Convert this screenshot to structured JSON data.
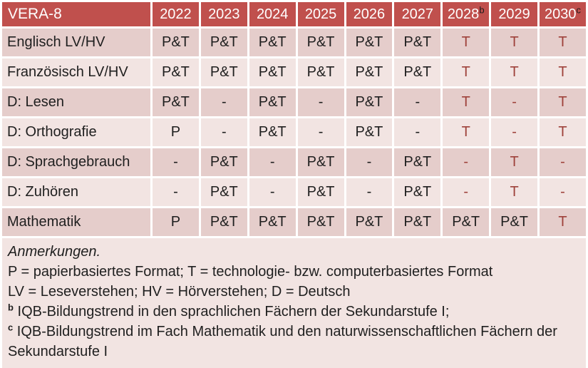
{
  "table": {
    "title": "VERA-8",
    "years": [
      {
        "label": "2022"
      },
      {
        "label": "2023"
      },
      {
        "label": "2024"
      },
      {
        "label": "2025"
      },
      {
        "label": "2026"
      },
      {
        "label": "2027"
      },
      {
        "label": "2028",
        "sup": "b"
      },
      {
        "label": "2029"
      },
      {
        "label": "2030",
        "sup": "c"
      }
    ],
    "rows": [
      {
        "label": "Englisch LV/HV",
        "cells": [
          {
            "text": "P&T"
          },
          {
            "text": "P&T"
          },
          {
            "text": "P&T"
          },
          {
            "text": "P&T"
          },
          {
            "text": "P&T"
          },
          {
            "text": "P&T"
          },
          {
            "text": "T",
            "accent": true
          },
          {
            "text": "T",
            "accent": true
          },
          {
            "text": "T",
            "accent": true
          }
        ]
      },
      {
        "label": "Französisch LV/HV",
        "cells": [
          {
            "text": "P&T"
          },
          {
            "text": "P&T"
          },
          {
            "text": "P&T"
          },
          {
            "text": "P&T"
          },
          {
            "text": "P&T"
          },
          {
            "text": "P&T"
          },
          {
            "text": "T",
            "accent": true
          },
          {
            "text": "T",
            "accent": true
          },
          {
            "text": "T",
            "accent": true
          }
        ]
      },
      {
        "label": "D: Lesen",
        "cells": [
          {
            "text": "P&T"
          },
          {
            "text": "-"
          },
          {
            "text": "P&T"
          },
          {
            "text": "-"
          },
          {
            "text": "P&T"
          },
          {
            "text": "-"
          },
          {
            "text": "T",
            "accent": true
          },
          {
            "text": "-",
            "accent": true
          },
          {
            "text": "T",
            "accent": true
          }
        ]
      },
      {
        "label": "D: Orthografie",
        "cells": [
          {
            "text": "P"
          },
          {
            "text": "-"
          },
          {
            "text": "P&T"
          },
          {
            "text": "-"
          },
          {
            "text": "P&T"
          },
          {
            "text": "-"
          },
          {
            "text": "T",
            "accent": true
          },
          {
            "text": "-",
            "accent": true
          },
          {
            "text": "T",
            "accent": true
          }
        ]
      },
      {
        "label": "D: Sprachgebrauch",
        "cells": [
          {
            "text": "-"
          },
          {
            "text": "P&T"
          },
          {
            "text": "-"
          },
          {
            "text": "P&T"
          },
          {
            "text": "-"
          },
          {
            "text": "P&T"
          },
          {
            "text": "-",
            "accent": true
          },
          {
            "text": "T",
            "accent": true
          },
          {
            "text": "-",
            "accent": true
          }
        ]
      },
      {
        "label": "D: Zuhören",
        "cells": [
          {
            "text": "-"
          },
          {
            "text": "P&T"
          },
          {
            "text": "-"
          },
          {
            "text": "P&T"
          },
          {
            "text": "-"
          },
          {
            "text": "P&T"
          },
          {
            "text": "-",
            "accent": true
          },
          {
            "text": "T",
            "accent": true
          },
          {
            "text": "-",
            "accent": true
          }
        ]
      },
      {
        "label": "Mathematik",
        "cells": [
          {
            "text": "P"
          },
          {
            "text": "P&T"
          },
          {
            "text": "P&T"
          },
          {
            "text": "P&T"
          },
          {
            "text": "P&T"
          },
          {
            "text": "P&T"
          },
          {
            "text": "P&T"
          },
          {
            "text": "P&T"
          },
          {
            "text": "T",
            "accent": true
          }
        ]
      }
    ]
  },
  "notes": {
    "heading": "Anmerkungen.",
    "legend": [
      "P = papierbasiertes Format; T = technologie- bzw. computerbasiertes Format",
      "LV = Leseverstehen; HV = Hörverstehen; D = Deutsch"
    ],
    "footnotes": [
      {
        "marker": "b",
        "text": "IQB-Bildungstrend in den sprachlichen Fächern der Sekundarstufe I;"
      },
      {
        "marker": "c",
        "text": "IQB-Bildungstrend im Fach Mathematik und den naturwissenschaftlichen Fächern der Sekundarstufe I"
      }
    ]
  },
  "colors": {
    "header_bg": "#C0504D",
    "header_text": "#FFFFFF",
    "sup_text": "#1A1A1A",
    "row_band_dark": "#E5CDCB",
    "row_band_light": "#F2E4E2",
    "notes_bg": "#F2E4E2",
    "accent_text": "#9E413A",
    "body_text": "#1F1F1F"
  }
}
